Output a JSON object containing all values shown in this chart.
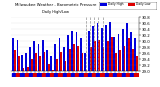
{
  "title": "Milwaukee Weather - Barometric Pressure",
  "subtitle": "Daily High/Low",
  "legend_high": "Daily High",
  "legend_low": "Daily Low",
  "color_high": "#0000dd",
  "color_low": "#dd0000",
  "background": "#ffffff",
  "ylim": [
    29.0,
    30.8
  ],
  "yticks": [
    29.0,
    29.2,
    29.4,
    29.6,
    29.8,
    30.0,
    30.2,
    30.4,
    30.6,
    30.8
  ],
  "dashed_line_indices": [
    17,
    18,
    19,
    20,
    21
  ],
  "highs": [
    30.1,
    30.05,
    29.55,
    29.6,
    29.8,
    30.0,
    29.9,
    30.05,
    29.7,
    29.5,
    29.9,
    30.1,
    29.8,
    30.2,
    30.35,
    30.3,
    30.1,
    29.6,
    30.35,
    30.5,
    30.6,
    30.45,
    30.55,
    30.65,
    30.15,
    30.25,
    30.4,
    30.6,
    30.3,
    30.1
  ],
  "lows": [
    29.7,
    29.5,
    29.1,
    29.15,
    29.4,
    29.6,
    29.5,
    29.65,
    29.25,
    29.05,
    29.4,
    29.65,
    29.35,
    29.75,
    29.9,
    29.85,
    29.6,
    29.05,
    29.8,
    30.0,
    30.05,
    29.8,
    30.0,
    30.15,
    29.6,
    29.7,
    29.85,
    30.1,
    29.75,
    29.5
  ],
  "xlabels": [
    "1",
    "2",
    "3",
    "4",
    "5",
    "6",
    "7",
    "8",
    "9",
    "10",
    "11",
    "12",
    "13",
    "14",
    "15",
    "16",
    "17",
    "18",
    "19",
    "20",
    "21",
    "22",
    "23",
    "24",
    "25",
    "26",
    "27",
    "28",
    "29",
    "30"
  ]
}
